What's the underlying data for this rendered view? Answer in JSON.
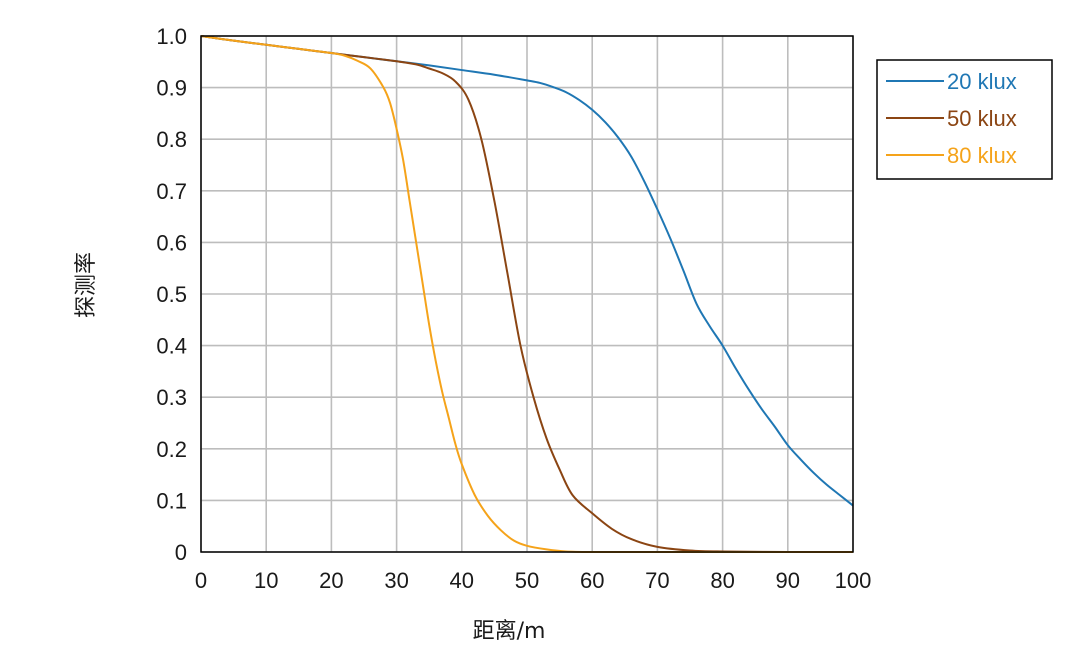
{
  "chart_data": {
    "type": "line",
    "title": "",
    "xlabel": "距离/m",
    "ylabel": "探测率",
    "xlim": [
      0,
      100
    ],
    "ylim": [
      0,
      1
    ],
    "x_ticks": [
      0,
      10,
      20,
      30,
      40,
      50,
      60,
      70,
      80,
      90,
      100
    ],
    "x_tick_labels": [
      "0",
      "10",
      "20",
      "30",
      "40",
      "50",
      "60",
      "70",
      "80",
      "90",
      "100"
    ],
    "y_ticks": [
      0,
      0.1,
      0.2,
      0.3,
      0.4,
      0.5,
      0.6,
      0.7,
      0.8,
      0.9,
      1.0
    ],
    "y_tick_labels": [
      "0",
      "0.1",
      "0.2",
      "0.3",
      "0.4",
      "0.5",
      "0.6",
      "0.7",
      "0.8",
      "0.9",
      "1.0"
    ],
    "grid": true,
    "legend_position": "top-right-outside",
    "series": [
      {
        "name": "20 klux",
        "color": "#1f77b4",
        "x": [
          0,
          5,
          10,
          15,
          20,
          25,
          30,
          35,
          40,
          45,
          50,
          52,
          54,
          56,
          58,
          60,
          62,
          64,
          66,
          68,
          70,
          72,
          74,
          76,
          78,
          80,
          82,
          84,
          86,
          88,
          90,
          92,
          94,
          96,
          98,
          100
        ],
        "y": [
          1.0,
          0.991,
          0.983,
          0.975,
          0.967,
          0.959,
          0.951,
          0.943,
          0.934,
          0.925,
          0.914,
          0.909,
          0.901,
          0.891,
          0.876,
          0.857,
          0.833,
          0.803,
          0.766,
          0.718,
          0.664,
          0.607,
          0.545,
          0.481,
          0.438,
          0.4,
          0.356,
          0.315,
          0.277,
          0.243,
          0.207,
          0.179,
          0.153,
          0.13,
          0.11,
          0.09
        ]
      },
      {
        "name": "50 klux",
        "color": "#8b4513",
        "x": [
          0,
          5,
          10,
          15,
          20,
          25,
          30,
          33,
          35,
          37,
          39,
          41,
          43,
          45,
          47,
          49,
          51,
          53,
          55,
          57,
          60,
          63,
          66,
          70,
          75,
          80,
          90,
          100
        ],
        "y": [
          1.0,
          0.991,
          0.983,
          0.975,
          0.967,
          0.959,
          0.951,
          0.945,
          0.937,
          0.928,
          0.912,
          0.877,
          0.8,
          0.68,
          0.54,
          0.4,
          0.3,
          0.22,
          0.16,
          0.11,
          0.075,
          0.045,
          0.025,
          0.01,
          0.003,
          0.001,
          0.0,
          0.0
        ]
      },
      {
        "name": "80 klux",
        "color": "#f5a31a",
        "x": [
          0,
          5,
          10,
          15,
          20,
          22,
          24,
          26,
          28,
          29,
          30,
          31,
          32,
          33,
          34,
          35,
          36,
          37,
          38,
          39,
          40,
          42,
          44,
          46,
          48,
          50,
          53,
          56,
          60,
          70,
          100
        ],
        "y": [
          1.0,
          0.991,
          0.983,
          0.975,
          0.967,
          0.962,
          0.952,
          0.937,
          0.9,
          0.87,
          0.82,
          0.76,
          0.68,
          0.6,
          0.52,
          0.44,
          0.37,
          0.31,
          0.26,
          0.21,
          0.17,
          0.11,
          0.07,
          0.042,
          0.022,
          0.012,
          0.005,
          0.001,
          0.0,
          0.0,
          0.0
        ]
      }
    ]
  }
}
